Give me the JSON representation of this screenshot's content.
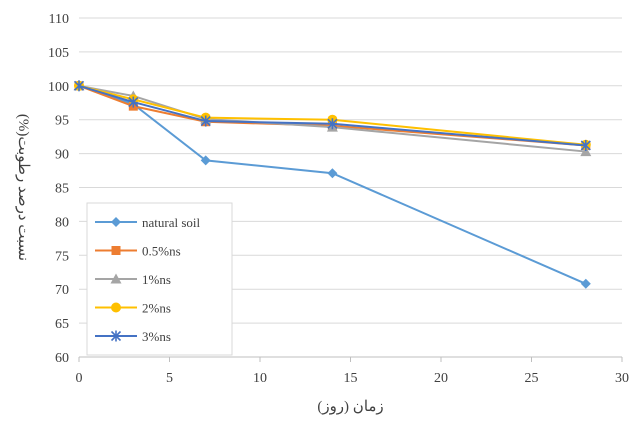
{
  "chart_data": {
    "type": "line",
    "title": "",
    "xlabel": "زمان (روز)",
    "ylabel": "نسبت درصد رطوبت(%)",
    "xlim": [
      0,
      30
    ],
    "ylim": [
      60,
      110
    ],
    "x_ticks": [
      0,
      5,
      10,
      15,
      20,
      25,
      30
    ],
    "y_ticks": [
      60,
      65,
      70,
      75,
      80,
      85,
      90,
      95,
      100,
      105,
      110
    ],
    "grid": "horizontal",
    "legend_position": "bottom-left",
    "x": [
      0,
      3,
      7,
      14,
      28
    ],
    "series": [
      {
        "name": "natural soil",
        "values": [
          100,
          97.3,
          89.0,
          87.1,
          70.8
        ],
        "color": "#5b9bd5",
        "marker": "diamond"
      },
      {
        "name": "0.5%ns",
        "values": [
          100,
          97.0,
          94.7,
          94.1,
          91.2
        ],
        "color": "#ed7d31",
        "marker": "square"
      },
      {
        "name": "1%ns",
        "values": [
          100,
          98.5,
          95.1,
          93.9,
          90.3
        ],
        "color": "#a5a5a5",
        "marker": "triangle"
      },
      {
        "name": "2%ns",
        "values": [
          100,
          98.0,
          95.3,
          95.0,
          91.3
        ],
        "color": "#ffc000",
        "marker": "circle"
      },
      {
        "name": "3%ns",
        "values": [
          100,
          97.6,
          94.8,
          94.4,
          91.2
        ],
        "color": "#4472c4",
        "marker": "star"
      }
    ]
  }
}
